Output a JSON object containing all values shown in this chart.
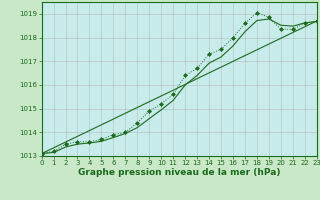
{
  "hours": [
    0,
    1,
    2,
    3,
    4,
    5,
    6,
    7,
    8,
    9,
    10,
    11,
    12,
    13,
    14,
    15,
    16,
    17,
    18,
    19,
    20,
    21,
    22,
    23
  ],
  "pressure_main": [
    1013.1,
    1013.2,
    1013.5,
    1013.6,
    1013.6,
    1013.7,
    1013.9,
    1014.0,
    1014.4,
    1014.9,
    1015.2,
    1015.6,
    1016.4,
    1016.7,
    1017.3,
    1017.5,
    1018.0,
    1018.6,
    1019.05,
    1018.85,
    1018.35,
    1018.35,
    1018.6,
    1018.7
  ],
  "pressure_smooth": [
    1013.1,
    1013.15,
    1013.38,
    1013.5,
    1013.55,
    1013.62,
    1013.78,
    1013.95,
    1014.2,
    1014.58,
    1014.95,
    1015.35,
    1016.0,
    1016.4,
    1016.92,
    1017.18,
    1017.65,
    1018.25,
    1018.72,
    1018.78,
    1018.52,
    1018.48,
    1018.62,
    1018.68
  ],
  "ylim": [
    1013.0,
    1019.5
  ],
  "yticks": [
    1013,
    1014,
    1015,
    1016,
    1017,
    1018,
    1019
  ],
  "xlim": [
    0,
    23
  ],
  "bg_color": "#c8e8c8",
  "plot_bg_color": "#c8ecec",
  "grid_color": "#b0b0b0",
  "line_color": "#1a6b1a",
  "marker": "D",
  "marker_size": 2.0,
  "xlabel": "Graphe pression niveau de la mer (hPa)",
  "xlabel_color": "#1a6b1a",
  "tick_color": "#1a6b1a",
  "tick_fontsize": 5.0,
  "xlabel_fontsize": 6.5
}
